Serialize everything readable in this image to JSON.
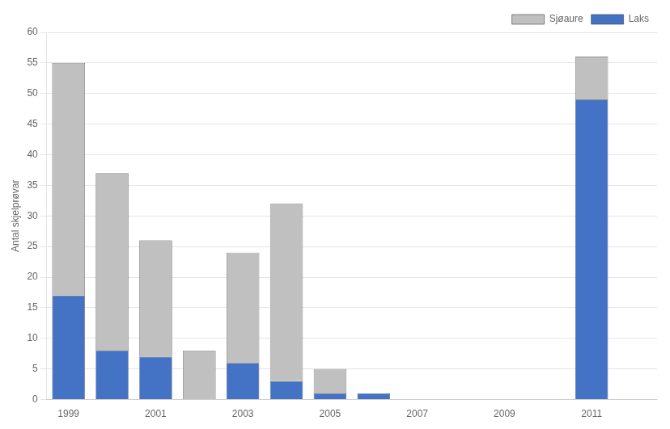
{
  "chart_data": {
    "type": "bar",
    "stacked": true,
    "ylabel": "Antal skjelprøvar",
    "categories": [
      "1999",
      null,
      "2001",
      null,
      "2003",
      null,
      "2005",
      null,
      "2007",
      null,
      "2009",
      null,
      "2011",
      null
    ],
    "series": [
      {
        "name": "Laks",
        "color": "#4472C4",
        "values": [
          17,
          8,
          7,
          0,
          6,
          3,
          1,
          1,
          0,
          0,
          0,
          0,
          49,
          0
        ]
      },
      {
        "name": "Sjøaure",
        "color": "#C0C0C0",
        "values": [
          38,
          29,
          19,
          8,
          18,
          29,
          4,
          0,
          0,
          0,
          0,
          0,
          7,
          0
        ]
      }
    ],
    "ylim": [
      0,
      60
    ],
    "yticks": [
      0,
      5,
      10,
      15,
      20,
      25,
      30,
      35,
      40,
      45,
      50,
      55,
      60
    ],
    "grid": true,
    "legend": "upper right"
  }
}
